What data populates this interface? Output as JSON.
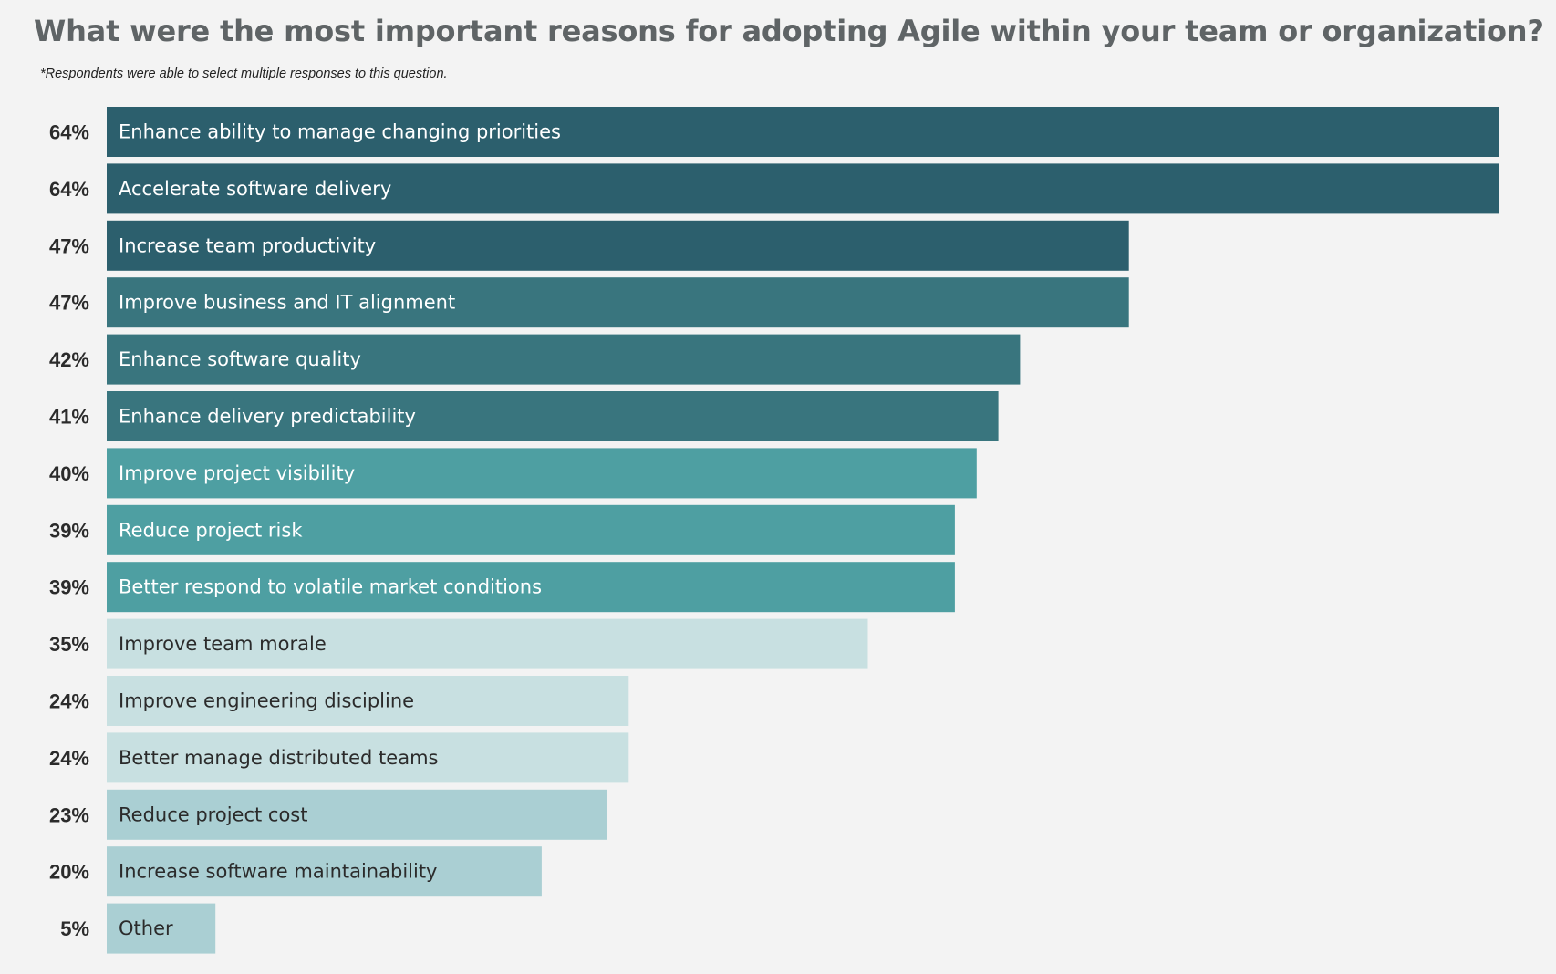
{
  "title": "What were the most important reasons for adopting Agile within your team or organization?",
  "note": "*Respondents were able to select multiple responses to this question.",
  "colors": {
    "background": "#f3f3f3",
    "title": "#5f6466",
    "dark": "#2c5f6d",
    "mid_dark": "#39757e",
    "mid": "#4e9fa2",
    "light": "#c8e0e1",
    "light_mid": "#aacfd3",
    "dark_text": "#ffffff",
    "light_text": "#2b2b2b"
  },
  "chart_data": {
    "type": "bar",
    "orientation": "horizontal",
    "title": "What were the most important reasons for adopting Agile within your team or organization?",
    "xlabel": "",
    "ylabel": "",
    "value_suffix": "%",
    "xlim": [
      0,
      64
    ],
    "grid": false,
    "legend": "none",
    "categories": [
      "Enhance ability to manage changing priorities",
      "Accelerate software delivery",
      "Increase team productivity",
      "Improve business and IT alignment",
      "Enhance software quality",
      "Enhance delivery predictability",
      "Improve project visibility",
      "Reduce project risk",
      "Better respond to volatile market conditions",
      "Improve team morale",
      "Improve engineering discipline",
      "Better manage distributed teams",
      "Reduce project cost",
      "Increase software maintainability",
      "Other"
    ],
    "values": [
      64,
      64,
      47,
      47,
      42,
      41,
      40,
      39,
      39,
      35,
      24,
      24,
      23,
      20,
      5
    ],
    "value_labels": [
      "64%",
      "64%",
      "47%",
      "47%",
      "42%",
      "41%",
      "40%",
      "39%",
      "39%",
      "35%",
      "24%",
      "24%",
      "23%",
      "20%",
      "5%"
    ],
    "bar_colors": [
      "#2c5f6d",
      "#2c5f6d",
      "#2c5f6d",
      "#39757e",
      "#39757e",
      "#39757e",
      "#4e9fa2",
      "#4e9fa2",
      "#4e9fa2",
      "#c8e0e1",
      "#c8e0e1",
      "#c8e0e1",
      "#aacfd3",
      "#aacfd3",
      "#aacfd3"
    ]
  }
}
